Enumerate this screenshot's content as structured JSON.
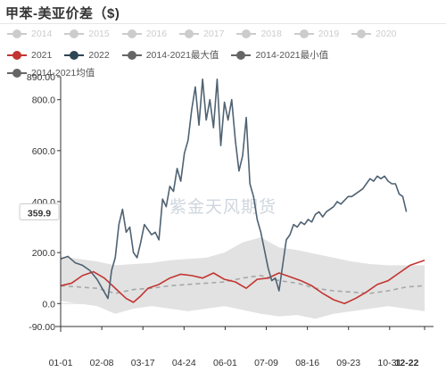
{
  "title": "甲苯-美亚价差（$)",
  "legend_row1": [
    {
      "label": "2014",
      "color": "#cccccc",
      "active": false
    },
    {
      "label": "2015",
      "color": "#cccccc",
      "active": false
    },
    {
      "label": "2016",
      "color": "#cccccc",
      "active": false
    },
    {
      "label": "2017",
      "color": "#cccccc",
      "active": false
    },
    {
      "label": "2018",
      "color": "#cccccc",
      "active": false
    },
    {
      "label": "2019",
      "color": "#cccccc",
      "active": false
    },
    {
      "label": "2020",
      "color": "#cccccc",
      "active": false
    }
  ],
  "legend_row2": [
    {
      "label": "2021",
      "color": "#c23531",
      "active": true
    },
    {
      "label": "2022",
      "color": "#2f4554",
      "active": true
    },
    {
      "label": "2014-2021最大值",
      "color": "#666666",
      "active": true
    },
    {
      "label": "2014-2021最小值",
      "color": "#666666",
      "active": true
    }
  ],
  "legend_row3": [
    {
      "label": "2014-2021均值",
      "color": "#666666",
      "active": true
    }
  ],
  "watermark": "紫金天风期货",
  "colors": {
    "s2021": "#c23531",
    "s2022": "#4f6272",
    "band": "#e2e2e2",
    "mean": "#a7a7a7",
    "axis": "#333333",
    "grid": "#dddddd"
  },
  "chart_data": {
    "type": "line",
    "title": "甲苯-美亚价差（$)",
    "ylim": [
      -90,
      890
    ],
    "y_ticks": [
      "-90.00",
      "0.0",
      "200.0",
      "400.0",
      "600.0",
      "800.0",
      "890.00"
    ],
    "x_ticks": [
      "01-01",
      "02-08",
      "03-17",
      "04-24",
      "06-01",
      "07-09",
      "08-16",
      "09-23",
      "10-31",
      "12-22"
    ],
    "last_value_label": "359.9",
    "x_index_max": 100,
    "band": {
      "x": [
        0,
        5,
        10,
        15,
        20,
        25,
        30,
        35,
        40,
        45,
        50,
        55,
        60,
        65,
        70,
        75,
        80,
        85,
        90,
        95,
        100
      ],
      "max": [
        185,
        175,
        165,
        150,
        155,
        160,
        170,
        175,
        180,
        200,
        240,
        260,
        220,
        210,
        195,
        180,
        165,
        155,
        150,
        150,
        150
      ],
      "min": [
        10,
        0,
        -10,
        -40,
        -20,
        -10,
        -20,
        -30,
        -20,
        -10,
        -25,
        -40,
        -50,
        -45,
        -60,
        -40,
        -30,
        -20,
        -10,
        -20,
        -30
      ]
    },
    "series": [
      {
        "name": "2014-2021均值",
        "x": [
          0,
          5,
          10,
          15,
          20,
          25,
          30,
          35,
          40,
          45,
          50,
          55,
          60,
          65,
          70,
          75,
          80,
          85,
          90,
          95,
          100
        ],
        "values": [
          70,
          65,
          60,
          40,
          55,
          60,
          70,
          75,
          80,
          85,
          100,
          110,
          90,
          80,
          60,
          50,
          45,
          40,
          50,
          65,
          70
        ]
      },
      {
        "name": "2021",
        "x": [
          0,
          3,
          6,
          9,
          12,
          15,
          18,
          20,
          22,
          24,
          27,
          30,
          33,
          36,
          39,
          42,
          45,
          48,
          51,
          54,
          57,
          60,
          63,
          66,
          69,
          72,
          75,
          78,
          81,
          84,
          87,
          90,
          93,
          96,
          100
        ],
        "values": [
          70,
          80,
          110,
          125,
          100,
          60,
          20,
          5,
          30,
          60,
          75,
          100,
          115,
          110,
          100,
          120,
          95,
          85,
          60,
          95,
          100,
          120,
          105,
          90,
          70,
          40,
          15,
          0,
          20,
          45,
          75,
          90,
          120,
          150,
          170
        ]
      },
      {
        "name": "2022",
        "x": [
          0,
          2,
          4,
          6,
          8,
          10,
          12,
          13,
          14,
          15,
          16,
          17,
          18,
          19,
          20,
          21,
          22,
          23,
          24,
          25,
          26,
          27,
          28,
          29,
          30,
          31,
          32,
          33,
          34,
          35,
          36,
          37,
          38,
          39,
          40,
          41,
          42,
          43,
          44,
          45,
          46,
          47,
          48,
          49,
          50,
          51,
          52,
          53,
          54,
          55,
          56,
          57,
          58,
          59,
          60,
          61,
          62,
          63,
          64,
          65,
          66,
          67,
          68,
          69,
          70,
          71,
          72,
          73,
          74,
          75,
          76,
          77,
          78,
          79,
          80,
          81,
          82,
          83,
          84,
          85,
          86,
          87,
          88,
          89,
          90,
          91,
          92,
          93,
          94,
          95
        ],
        "values": [
          175,
          185,
          160,
          150,
          130,
          95,
          45,
          20,
          130,
          180,
          310,
          370,
          280,
          300,
          200,
          180,
          240,
          310,
          290,
          270,
          280,
          250,
          410,
          380,
          460,
          440,
          530,
          480,
          590,
          640,
          760,
          850,
          700,
          880,
          720,
          800,
          690,
          880,
          620,
          790,
          720,
          800,
          640,
          520,
          580,
          730,
          470,
          420,
          330,
          280,
          210,
          140,
          90,
          100,
          50,
          150,
          250,
          270,
          310,
          300,
          320,
          310,
          330,
          320,
          350,
          360,
          340,
          360,
          370,
          380,
          400,
          390,
          405,
          420,
          420,
          430,
          440,
          450,
          470,
          490,
          480,
          500,
          490,
          500,
          480,
          470,
          470,
          430,
          420,
          360
        ]
      }
    ]
  }
}
